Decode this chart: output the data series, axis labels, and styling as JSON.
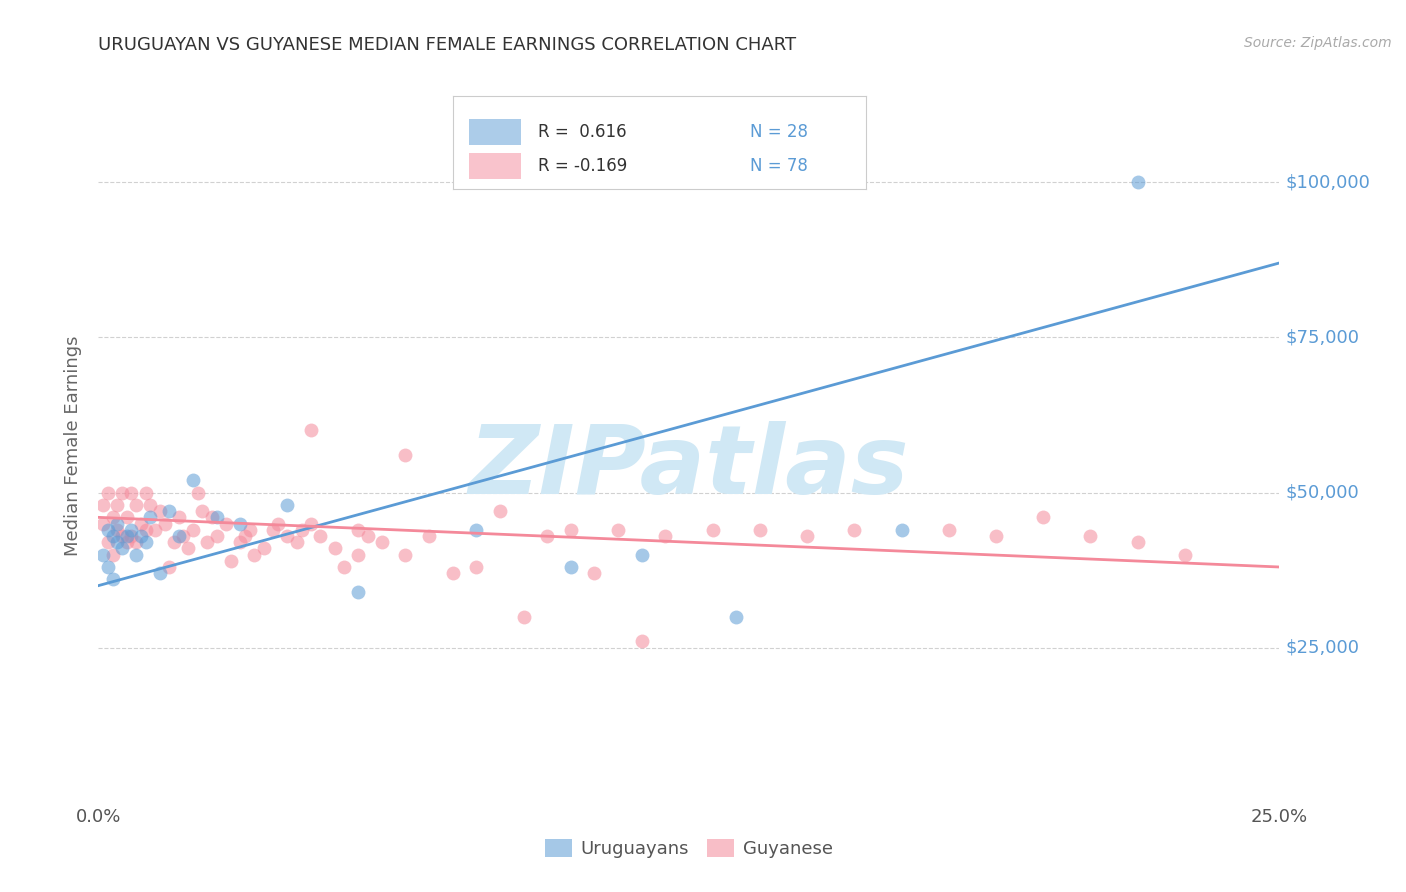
{
  "title": "URUGUAYAN VS GUYANESE MEDIAN FEMALE EARNINGS CORRELATION CHART",
  "source": "Source: ZipAtlas.com",
  "ylabel": "Median Female Earnings",
  "xlim": [
    0.0,
    0.25
  ],
  "ylim": [
    0,
    115000
  ],
  "ytick_values": [
    25000,
    50000,
    75000,
    100000
  ],
  "ytick_labels": [
    "$25,000",
    "$50,000",
    "$75,000",
    "$100,000"
  ],
  "title_color": "#333333",
  "source_color": "#aaaaaa",
  "blue_color": "#5b9bd5",
  "pink_color": "#f4899a",
  "legend_label_blue": "Uruguayans",
  "legend_label_pink": "Guyanese",
  "watermark": "ZIPatlas",
  "watermark_color": "#d0e8f5",
  "uruguayan_x": [
    0.001,
    0.002,
    0.002,
    0.003,
    0.003,
    0.004,
    0.004,
    0.005,
    0.006,
    0.007,
    0.008,
    0.009,
    0.01,
    0.011,
    0.013,
    0.015,
    0.017,
    0.02,
    0.025,
    0.03,
    0.04,
    0.055,
    0.08,
    0.1,
    0.115,
    0.135,
    0.17,
    0.22
  ],
  "uruguayan_y": [
    40000,
    44000,
    38000,
    43000,
    36000,
    45000,
    42000,
    41000,
    43000,
    44000,
    40000,
    43000,
    42000,
    46000,
    37000,
    47000,
    43000,
    52000,
    46000,
    45000,
    48000,
    34000,
    44000,
    38000,
    40000,
    30000,
    44000,
    100000
  ],
  "guyanese_x": [
    0.001,
    0.001,
    0.002,
    0.002,
    0.003,
    0.003,
    0.004,
    0.004,
    0.005,
    0.005,
    0.006,
    0.006,
    0.007,
    0.007,
    0.008,
    0.008,
    0.009,
    0.01,
    0.01,
    0.011,
    0.012,
    0.013,
    0.014,
    0.015,
    0.016,
    0.017,
    0.018,
    0.019,
    0.02,
    0.021,
    0.022,
    0.023,
    0.024,
    0.025,
    0.027,
    0.028,
    0.03,
    0.031,
    0.032,
    0.033,
    0.035,
    0.037,
    0.038,
    0.04,
    0.042,
    0.043,
    0.045,
    0.047,
    0.05,
    0.052,
    0.055,
    0.057,
    0.06,
    0.065,
    0.07,
    0.08,
    0.09,
    0.1,
    0.11,
    0.12,
    0.13,
    0.14,
    0.15,
    0.16,
    0.18,
    0.19,
    0.2,
    0.21,
    0.22,
    0.23,
    0.115,
    0.105,
    0.095,
    0.085,
    0.075,
    0.065,
    0.055,
    0.045
  ],
  "guyanese_y": [
    45000,
    48000,
    42000,
    50000,
    46000,
    40000,
    48000,
    44000,
    50000,
    43000,
    46000,
    42000,
    43000,
    50000,
    42000,
    48000,
    45000,
    50000,
    44000,
    48000,
    44000,
    47000,
    45000,
    38000,
    42000,
    46000,
    43000,
    41000,
    44000,
    50000,
    47000,
    42000,
    46000,
    43000,
    45000,
    39000,
    42000,
    43000,
    44000,
    40000,
    41000,
    44000,
    45000,
    43000,
    42000,
    44000,
    45000,
    43000,
    41000,
    38000,
    40000,
    43000,
    42000,
    40000,
    43000,
    38000,
    30000,
    44000,
    44000,
    43000,
    44000,
    44000,
    43000,
    44000,
    44000,
    43000,
    46000,
    43000,
    42000,
    40000,
    26000,
    37000,
    43000,
    47000,
    37000,
    56000,
    44000,
    60000
  ],
  "blue_line_x": [
    0.0,
    0.25
  ],
  "blue_line_y": [
    35000,
    87000
  ],
  "pink_line_x": [
    0.0,
    0.25
  ],
  "pink_line_y": [
    46000,
    38000
  ],
  "background_color": "#ffffff",
  "grid_color": "#cccccc"
}
